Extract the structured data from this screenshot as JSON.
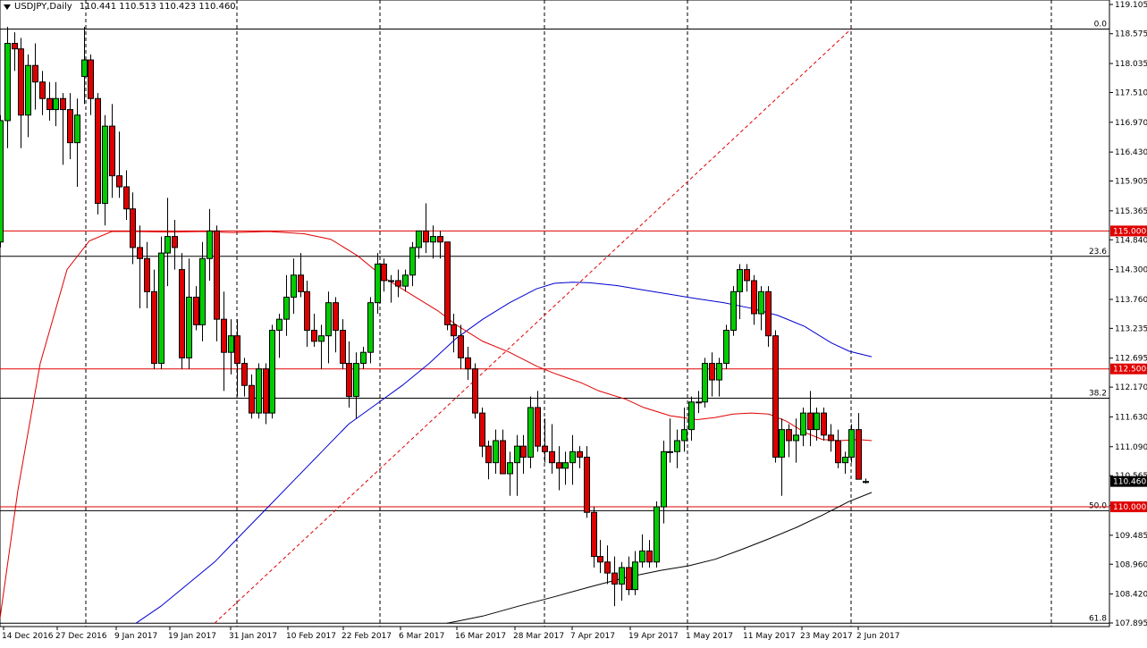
{
  "window": {
    "symbol": "USDJPY,Daily",
    "ohlc": "110.441 110.513 110.423 110.460"
  },
  "chart_data": {
    "type": "candlestick",
    "symbol": "USDJPY",
    "timeframe": "Daily",
    "ylim": [
      107.895,
      119.105
    ],
    "y_ticks": [
      "119.105",
      "118.575",
      "118.035",
      "117.510",
      "116.970",
      "116.430",
      "115.905",
      "115.365",
      "114.840",
      "114.300",
      "113.760",
      "113.235",
      "112.695",
      "112.170",
      "111.630",
      "111.090",
      "110.565",
      "110.025",
      "109.485",
      "108.960",
      "108.420",
      "107.895"
    ],
    "x_ticks": [
      "14 Dec 2016",
      "27 Dec 2016",
      "9 Jan 2017",
      "19 Jan 2017",
      "31 Jan 2017",
      "10 Feb 2017",
      "22 Feb 2017",
      "6 Mar 2017",
      "16 Mar 2017",
      "28 Mar 2017",
      "7 Apr 2017",
      "19 Apr 2017",
      "1 May 2017",
      "11 May 2017",
      "23 May 2017",
      "2 Jun 2017"
    ],
    "current_price": "110.460",
    "horizontal_levels": [
      {
        "value": 115.0,
        "label": "115.000",
        "color": "#e00000"
      },
      {
        "value": 112.5,
        "label": "112.500",
        "color": "#e00000"
      },
      {
        "value": 110.0,
        "label": "110.000",
        "color": "#e00000"
      }
    ],
    "fibonacci": [
      {
        "level": "0.0",
        "value": 118.66
      },
      {
        "level": "23.6",
        "value": 114.54
      },
      {
        "level": "38.2",
        "value": 111.97
      },
      {
        "level": "50.0",
        "value": 109.93
      },
      {
        "level": "61.8",
        "value": 107.89
      }
    ],
    "candles": [
      {
        "o": 114.8,
        "h": 117.1,
        "l": 114.7,
        "c": 117.0
      },
      {
        "o": 117.0,
        "h": 118.7,
        "l": 116.5,
        "c": 118.4
      },
      {
        "o": 118.4,
        "h": 118.6,
        "l": 117.9,
        "c": 118.3
      },
      {
        "o": 118.3,
        "h": 118.5,
        "l": 116.5,
        "c": 117.1
      },
      {
        "o": 117.1,
        "h": 118.2,
        "l": 116.7,
        "c": 118.0
      },
      {
        "o": 118.0,
        "h": 118.4,
        "l": 117.2,
        "c": 117.7
      },
      {
        "o": 117.7,
        "h": 117.9,
        "l": 117.1,
        "c": 117.4
      },
      {
        "o": 117.4,
        "h": 117.7,
        "l": 117.0,
        "c": 117.2
      },
      {
        "o": 117.2,
        "h": 117.7,
        "l": 116.9,
        "c": 117.4
      },
      {
        "o": 117.4,
        "h": 117.5,
        "l": 116.2,
        "c": 117.2
      },
      {
        "o": 117.2,
        "h": 117.5,
        "l": 116.3,
        "c": 116.6
      },
      {
        "o": 116.6,
        "h": 117.4,
        "l": 115.8,
        "c": 117.1
      },
      {
        "o": 117.8,
        "h": 118.7,
        "l": 117.3,
        "c": 118.1
      },
      {
        "o": 118.1,
        "h": 118.2,
        "l": 117.1,
        "c": 117.4
      },
      {
        "o": 117.4,
        "h": 117.5,
        "l": 115.3,
        "c": 115.5
      },
      {
        "o": 115.5,
        "h": 117.1,
        "l": 115.1,
        "c": 116.9
      },
      {
        "o": 116.9,
        "h": 117.3,
        "l": 115.6,
        "c": 116.0
      },
      {
        "o": 116.0,
        "h": 116.8,
        "l": 115.6,
        "c": 115.8
      },
      {
        "o": 115.8,
        "h": 116.1,
        "l": 115.2,
        "c": 115.4
      },
      {
        "o": 115.4,
        "h": 115.7,
        "l": 114.4,
        "c": 114.7
      },
      {
        "o": 114.7,
        "h": 115.1,
        "l": 113.6,
        "c": 114.5
      },
      {
        "o": 114.5,
        "h": 114.8,
        "l": 113.6,
        "c": 113.9
      },
      {
        "o": 113.9,
        "h": 114.3,
        "l": 112.5,
        "c": 112.6
      },
      {
        "o": 112.6,
        "h": 114.9,
        "l": 112.5,
        "c": 114.6
      },
      {
        "o": 114.6,
        "h": 115.6,
        "l": 114.0,
        "c": 114.9
      },
      {
        "o": 114.9,
        "h": 115.2,
        "l": 114.3,
        "c": 114.7
      },
      {
        "o": 114.3,
        "h": 114.6,
        "l": 112.5,
        "c": 112.7
      },
      {
        "o": 112.7,
        "h": 114.5,
        "l": 112.5,
        "c": 113.8
      },
      {
        "o": 113.8,
        "h": 114.0,
        "l": 113.2,
        "c": 113.3
      },
      {
        "o": 113.3,
        "h": 114.8,
        "l": 113.0,
        "c": 114.5
      },
      {
        "o": 114.5,
        "h": 115.4,
        "l": 114.1,
        "c": 115.0
      },
      {
        "o": 115.0,
        "h": 115.1,
        "l": 113.0,
        "c": 113.4
      },
      {
        "o": 113.4,
        "h": 113.9,
        "l": 112.1,
        "c": 112.8
      },
      {
        "o": 112.8,
        "h": 113.4,
        "l": 112.4,
        "c": 113.1
      },
      {
        "o": 113.1,
        "h": 113.4,
        "l": 112.0,
        "c": 112.6
      },
      {
        "o": 112.6,
        "h": 112.7,
        "l": 112.0,
        "c": 112.2
      },
      {
        "o": 112.2,
        "h": 112.4,
        "l": 111.6,
        "c": 111.7
      },
      {
        "o": 111.7,
        "h": 112.6,
        "l": 111.6,
        "c": 112.5
      },
      {
        "o": 112.5,
        "h": 112.6,
        "l": 111.5,
        "c": 111.7
      },
      {
        "o": 111.7,
        "h": 113.3,
        "l": 111.6,
        "c": 113.2
      },
      {
        "o": 113.2,
        "h": 113.5,
        "l": 112.7,
        "c": 113.4
      },
      {
        "o": 113.4,
        "h": 114.2,
        "l": 113.1,
        "c": 113.8
      },
      {
        "o": 113.8,
        "h": 114.5,
        "l": 113.5,
        "c": 114.2
      },
      {
        "o": 114.2,
        "h": 114.6,
        "l": 113.8,
        "c": 113.9
      },
      {
        "o": 113.9,
        "h": 114.1,
        "l": 112.9,
        "c": 113.2
      },
      {
        "o": 113.2,
        "h": 113.5,
        "l": 112.9,
        "c": 113.0
      },
      {
        "o": 113.0,
        "h": 113.3,
        "l": 112.5,
        "c": 113.1
      },
      {
        "o": 113.1,
        "h": 113.9,
        "l": 112.6,
        "c": 113.7
      },
      {
        "o": 113.7,
        "h": 113.8,
        "l": 112.8,
        "c": 113.2
      },
      {
        "o": 113.2,
        "h": 113.4,
        "l": 112.5,
        "c": 112.6
      },
      {
        "o": 112.6,
        "h": 113.0,
        "l": 111.8,
        "c": 112.0
      },
      {
        "o": 112.0,
        "h": 112.8,
        "l": 111.6,
        "c": 112.6
      },
      {
        "o": 112.6,
        "h": 112.9,
        "l": 112.5,
        "c": 112.8
      },
      {
        "o": 112.8,
        "h": 113.8,
        "l": 112.6,
        "c": 113.7
      },
      {
        "o": 113.7,
        "h": 114.6,
        "l": 113.5,
        "c": 114.4
      },
      {
        "o": 114.4,
        "h": 114.5,
        "l": 113.9,
        "c": 114.1
      },
      {
        "o": 114.1,
        "h": 114.2,
        "l": 113.7,
        "c": 114.1
      },
      {
        "o": 114.1,
        "h": 114.3,
        "l": 113.8,
        "c": 114.0
      },
      {
        "o": 114.0,
        "h": 114.3,
        "l": 113.9,
        "c": 114.2
      },
      {
        "o": 114.2,
        "h": 114.8,
        "l": 114.0,
        "c": 114.7
      },
      {
        "o": 114.7,
        "h": 115.0,
        "l": 114.5,
        "c": 115.0
      },
      {
        "o": 115.0,
        "h": 115.5,
        "l": 114.6,
        "c": 114.8
      },
      {
        "o": 114.8,
        "h": 115.1,
        "l": 114.5,
        "c": 114.9
      },
      {
        "o": 114.9,
        "h": 115.0,
        "l": 114.5,
        "c": 114.8
      },
      {
        "o": 114.8,
        "h": 114.8,
        "l": 113.2,
        "c": 113.3
      },
      {
        "o": 113.3,
        "h": 113.5,
        "l": 112.8,
        "c": 113.1
      },
      {
        "o": 113.1,
        "h": 113.3,
        "l": 112.5,
        "c": 112.7
      },
      {
        "o": 112.7,
        "h": 112.9,
        "l": 112.3,
        "c": 112.5
      },
      {
        "o": 112.5,
        "h": 112.6,
        "l": 111.6,
        "c": 111.7
      },
      {
        "o": 111.7,
        "h": 111.8,
        "l": 110.9,
        "c": 111.1
      },
      {
        "o": 111.1,
        "h": 111.2,
        "l": 110.5,
        "c": 110.8
      },
      {
        "o": 110.8,
        "h": 111.4,
        "l": 110.6,
        "c": 111.2
      },
      {
        "o": 111.2,
        "h": 111.4,
        "l": 110.6,
        "c": 110.6
      },
      {
        "o": 110.6,
        "h": 111.0,
        "l": 110.2,
        "c": 110.8
      },
      {
        "o": 110.8,
        "h": 111.3,
        "l": 110.2,
        "c": 111.1
      },
      {
        "o": 111.1,
        "h": 111.3,
        "l": 110.6,
        "c": 110.9
      },
      {
        "o": 110.9,
        "h": 112.0,
        "l": 110.7,
        "c": 111.8
      },
      {
        "o": 111.8,
        "h": 112.1,
        "l": 111.0,
        "c": 111.1
      },
      {
        "o": 111.1,
        "h": 111.6,
        "l": 110.8,
        "c": 111.0
      },
      {
        "o": 111.0,
        "h": 111.5,
        "l": 110.6,
        "c": 110.8
      },
      {
        "o": 110.8,
        "h": 111.1,
        "l": 110.3,
        "c": 110.7
      },
      {
        "o": 110.7,
        "h": 111.0,
        "l": 110.4,
        "c": 110.8
      },
      {
        "o": 110.8,
        "h": 111.3,
        "l": 110.4,
        "c": 111.0
      },
      {
        "o": 111.0,
        "h": 111.1,
        "l": 110.7,
        "c": 110.9
      },
      {
        "o": 110.9,
        "h": 111.1,
        "l": 109.8,
        "c": 109.9
      },
      {
        "o": 109.9,
        "h": 110.0,
        "l": 108.9,
        "c": 109.1
      },
      {
        "o": 109.1,
        "h": 109.4,
        "l": 108.8,
        "c": 109.0
      },
      {
        "o": 109.0,
        "h": 109.3,
        "l": 108.6,
        "c": 108.8
      },
      {
        "o": 108.8,
        "h": 109.1,
        "l": 108.2,
        "c": 108.6
      },
      {
        "o": 108.6,
        "h": 109.0,
        "l": 108.3,
        "c": 108.9
      },
      {
        "o": 108.9,
        "h": 109.1,
        "l": 108.4,
        "c": 108.5
      },
      {
        "o": 108.5,
        "h": 109.2,
        "l": 108.4,
        "c": 109.0
      },
      {
        "o": 109.0,
        "h": 109.5,
        "l": 108.9,
        "c": 109.2
      },
      {
        "o": 109.2,
        "h": 109.4,
        "l": 108.9,
        "c": 109.0
      },
      {
        "o": 109.0,
        "h": 110.1,
        "l": 108.9,
        "c": 110.0
      },
      {
        "o": 110.0,
        "h": 111.2,
        "l": 109.7,
        "c": 111.0
      },
      {
        "o": 111.0,
        "h": 111.6,
        "l": 110.8,
        "c": 111.0
      },
      {
        "o": 111.0,
        "h": 111.4,
        "l": 110.7,
        "c": 111.2
      },
      {
        "o": 111.2,
        "h": 111.8,
        "l": 111.0,
        "c": 111.4
      },
      {
        "o": 111.4,
        "h": 112.0,
        "l": 111.2,
        "c": 111.9
      },
      {
        "o": 111.9,
        "h": 112.1,
        "l": 111.7,
        "c": 111.9
      },
      {
        "o": 111.9,
        "h": 112.7,
        "l": 111.8,
        "c": 112.6
      },
      {
        "o": 112.6,
        "h": 112.8,
        "l": 112.0,
        "c": 112.3
      },
      {
        "o": 112.3,
        "h": 112.7,
        "l": 112.0,
        "c": 112.6
      },
      {
        "o": 112.6,
        "h": 113.3,
        "l": 112.5,
        "c": 113.2
      },
      {
        "o": 113.2,
        "h": 114.0,
        "l": 113.1,
        "c": 113.9
      },
      {
        "o": 113.9,
        "h": 114.4,
        "l": 113.4,
        "c": 114.3
      },
      {
        "o": 114.3,
        "h": 114.4,
        "l": 113.9,
        "c": 114.1
      },
      {
        "o": 114.1,
        "h": 114.2,
        "l": 113.3,
        "c": 113.5
      },
      {
        "o": 113.5,
        "h": 114.0,
        "l": 113.2,
        "c": 113.9
      },
      {
        "o": 113.9,
        "h": 114.0,
        "l": 112.9,
        "c": 113.1
      },
      {
        "o": 113.1,
        "h": 113.2,
        "l": 110.8,
        "c": 110.9
      },
      {
        "o": 110.9,
        "h": 111.6,
        "l": 110.2,
        "c": 111.4
      },
      {
        "o": 111.4,
        "h": 111.5,
        "l": 110.9,
        "c": 111.2
      },
      {
        "o": 111.2,
        "h": 111.6,
        "l": 110.8,
        "c": 111.3
      },
      {
        "o": 111.3,
        "h": 111.8,
        "l": 111.1,
        "c": 111.7
      },
      {
        "o": 111.7,
        "h": 112.1,
        "l": 111.1,
        "c": 111.4
      },
      {
        "o": 111.4,
        "h": 111.8,
        "l": 111.2,
        "c": 111.7
      },
      {
        "o": 111.7,
        "h": 111.8,
        "l": 111.2,
        "c": 111.3
      },
      {
        "o": 111.3,
        "h": 111.5,
        "l": 111.0,
        "c": 111.2
      },
      {
        "o": 111.2,
        "h": 111.4,
        "l": 110.7,
        "c": 110.8
      },
      {
        "o": 110.8,
        "h": 111.0,
        "l": 110.6,
        "c": 110.9
      },
      {
        "o": 110.9,
        "h": 111.5,
        "l": 110.8,
        "c": 111.4
      },
      {
        "o": 111.4,
        "h": 111.7,
        "l": 110.5,
        "c": 110.5
      },
      {
        "o": 110.441,
        "h": 110.513,
        "l": 110.423,
        "c": 110.46
      }
    ],
    "ma_red": [
      [
        0,
        107.98
      ],
      [
        20,
        110.3
      ],
      [
        45,
        112.6
      ],
      [
        75,
        114.3
      ],
      [
        100,
        114.82
      ],
      [
        125,
        114.99
      ],
      [
        150,
        114.99
      ],
      [
        190,
        114.98
      ],
      [
        230,
        114.99
      ],
      [
        260,
        114.97
      ],
      [
        300,
        114.99
      ],
      [
        340,
        114.95
      ],
      [
        370,
        114.85
      ],
      [
        400,
        114.55
      ],
      [
        430,
        114.15
      ],
      [
        460,
        113.85
      ],
      [
        490,
        113.55
      ],
      [
        510,
        113.3
      ],
      [
        540,
        113.0
      ],
      [
        570,
        112.8
      ],
      [
        600,
        112.55
      ],
      [
        620,
        112.42
      ],
      [
        650,
        112.25
      ],
      [
        670,
        112.1
      ],
      [
        700,
        111.95
      ],
      [
        720,
        111.8
      ],
      [
        750,
        111.65
      ],
      [
        780,
        111.58
      ],
      [
        800,
        111.62
      ],
      [
        820,
        111.68
      ],
      [
        840,
        111.7
      ],
      [
        860,
        111.68
      ],
      [
        880,
        111.55
      ],
      [
        900,
        111.35
      ],
      [
        920,
        111.22
      ],
      [
        940,
        111.2
      ],
      [
        960,
        111.22
      ],
      [
        975,
        111.2
      ]
    ],
    "ma_blue": [
      [
        152,
        107.89
      ],
      [
        180,
        108.2
      ],
      [
        210,
        108.6
      ],
      [
        240,
        109.0
      ],
      [
        270,
        109.5
      ],
      [
        300,
        110.0
      ],
      [
        330,
        110.5
      ],
      [
        360,
        111.0
      ],
      [
        390,
        111.5
      ],
      [
        420,
        111.85
      ],
      [
        450,
        112.2
      ],
      [
        480,
        112.6
      ],
      [
        510,
        113.05
      ],
      [
        540,
        113.4
      ],
      [
        570,
        113.7
      ],
      [
        600,
        113.95
      ],
      [
        620,
        114.05
      ],
      [
        640,
        114.07
      ],
      [
        660,
        114.06
      ],
      [
        690,
        114.01
      ],
      [
        720,
        113.93
      ],
      [
        750,
        113.85
      ],
      [
        780,
        113.77
      ],
      [
        810,
        113.7
      ],
      [
        840,
        113.6
      ],
      [
        870,
        113.47
      ],
      [
        900,
        113.27
      ],
      [
        930,
        112.97
      ],
      [
        950,
        112.82
      ],
      [
        975,
        112.72
      ]
    ],
    "ma_black": [
      [
        500,
        107.89
      ],
      [
        540,
        108.02
      ],
      [
        580,
        108.2
      ],
      [
        620,
        108.37
      ],
      [
        660,
        108.55
      ],
      [
        700,
        108.72
      ],
      [
        740,
        108.85
      ],
      [
        770,
        108.93
      ],
      [
        800,
        109.05
      ],
      [
        830,
        109.23
      ],
      [
        860,
        109.42
      ],
      [
        890,
        109.62
      ],
      [
        920,
        109.85
      ],
      [
        950,
        110.1
      ],
      [
        975,
        110.26
      ]
    ]
  }
}
